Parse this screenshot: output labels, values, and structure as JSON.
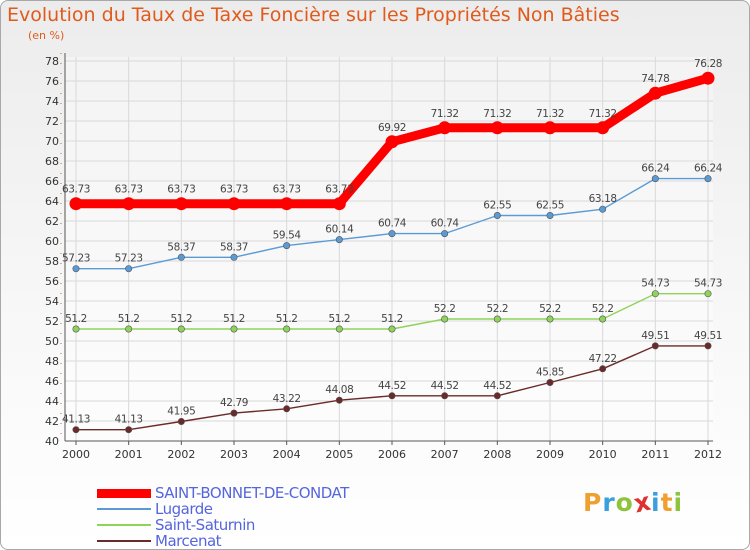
{
  "page": {
    "title": "Evolution du Taux de Taxe Foncière sur les Propriétés Non Bâties",
    "subtitle": "(en %)"
  },
  "logo": {
    "letters": [
      "P",
      "r",
      "o",
      "x",
      "i",
      "t",
      "i"
    ],
    "colors": [
      "#f0a030",
      "#3aa0dd",
      "#8cc43c",
      "#e03030",
      "#3aa0dd",
      "#f0a030",
      "#8cc43c"
    ]
  },
  "chart_data": {
    "type": "line",
    "title": "Evolution du Taux de Taxe Foncière sur les Propriétés Non Bâties",
    "ylabel": "(en %)",
    "xlabel": "",
    "x": [
      "2000",
      "2001",
      "2002",
      "2003",
      "2004",
      "2005",
      "2006",
      "2007",
      "2008",
      "2009",
      "2010",
      "2011",
      "2012"
    ],
    "ylim": [
      40,
      78
    ],
    "yticks": [
      40,
      42,
      44,
      46,
      48,
      50,
      52,
      54,
      56,
      58,
      60,
      62,
      64,
      66,
      68,
      70,
      72,
      74,
      76,
      78
    ],
    "grid": true,
    "legend_position": "bottom-left",
    "series": [
      {
        "name": "SAINT-BONNET-DE-CONDAT",
        "color": "#ff0000",
        "highlight": true,
        "values": [
          63.73,
          63.73,
          63.73,
          63.73,
          63.73,
          63.73,
          69.92,
          71.32,
          71.32,
          71.32,
          71.32,
          74.78,
          76.28
        ],
        "labels": [
          "63.73",
          "63.73",
          "63.73",
          "63.73",
          "63.73",
          "63.73",
          "69.92",
          "71.32",
          "71.32",
          "71.32",
          "71.32",
          "74.78",
          "76.28"
        ]
      },
      {
        "name": "Lugarde",
        "color": "#5b9bd5",
        "values": [
          57.23,
          57.23,
          58.37,
          58.37,
          59.54,
          60.14,
          60.74,
          60.74,
          62.55,
          62.55,
          63.18,
          66.24,
          66.24
        ],
        "labels": [
          "57.23",
          "57.23",
          "58.37",
          "58.37",
          "59.54",
          "60.14",
          "60.74",
          "60.74",
          "62.55",
          "62.55",
          "63.18",
          "66.24",
          "66.24"
        ]
      },
      {
        "name": "Saint-Saturnin",
        "color": "#8ed35a",
        "values": [
          51.2,
          51.2,
          51.2,
          51.2,
          51.2,
          51.2,
          51.2,
          52.2,
          52.2,
          52.2,
          52.2,
          54.73,
          54.73
        ],
        "labels": [
          "51.2",
          "51.2",
          "51.2",
          "51.2",
          "51.2",
          "51.2",
          "51.2",
          "52.2",
          "52.2",
          "52.2",
          "52.2",
          "54.73",
          "54.73"
        ]
      },
      {
        "name": "Marcenat",
        "color": "#6b2a2a",
        "values": [
          41.13,
          41.13,
          41.95,
          42.79,
          43.22,
          44.08,
          44.52,
          44.52,
          44.52,
          45.85,
          47.22,
          49.51,
          49.51
        ],
        "labels": [
          "41.13",
          "41.13",
          "41.95",
          "42.79",
          "43.22",
          "44.08",
          "44.52",
          "44.52",
          "44.52",
          "45.85",
          "47.22",
          "49.51",
          "49.51"
        ]
      }
    ]
  }
}
